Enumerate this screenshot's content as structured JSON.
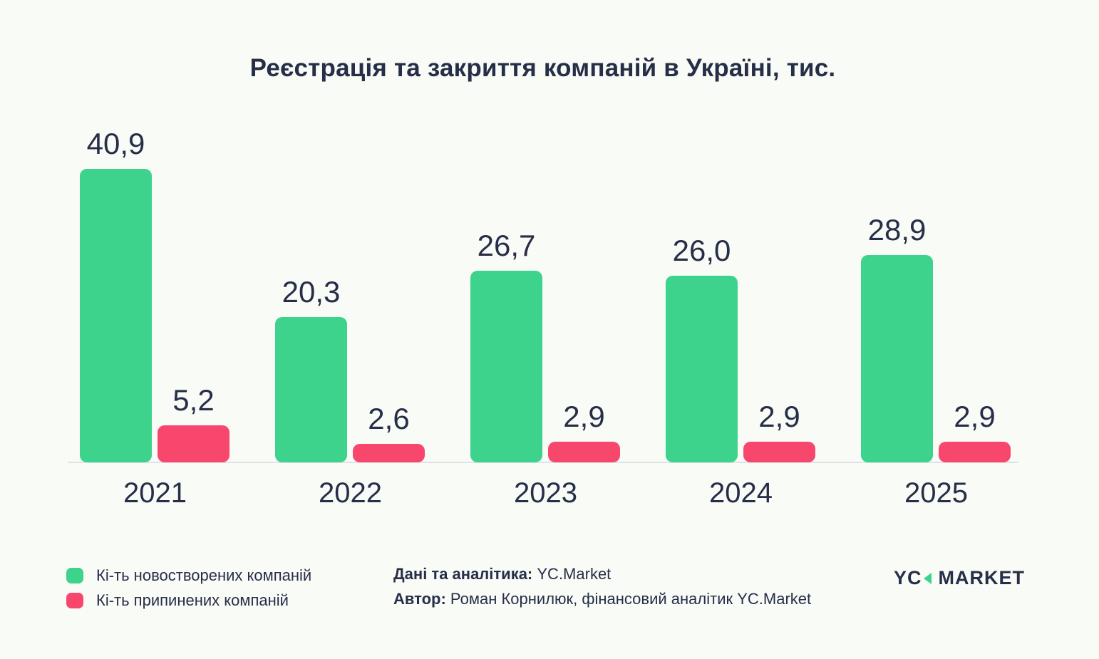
{
  "title": "Реєстрація та закриття компаній в Україні, тис.",
  "chart_data": {
    "type": "bar",
    "title": "Реєстрація та закриття компаній в Україні, тис.",
    "categories": [
      "2021",
      "2022",
      "2023",
      "2024",
      "2025"
    ],
    "series": [
      {
        "name": "Кі-ть новостворених компаній",
        "key": "registered",
        "color": "#3dd38c",
        "values": [
          40.9,
          20.3,
          26.7,
          26.0,
          28.9
        ],
        "display": [
          "40,9",
          "20,3",
          "26,7",
          "26,0",
          "28,9"
        ]
      },
      {
        "name": "Кі-ть припинених компаній",
        "key": "closed",
        "color": "#f8476d",
        "values": [
          5.2,
          2.6,
          2.9,
          2.9,
          2.9
        ],
        "display": [
          "5,2",
          "2,6",
          "2,9",
          "2,9",
          "2,9"
        ]
      }
    ],
    "xlabel": "",
    "ylabel": "",
    "ylim": [
      0,
      40.9
    ],
    "grid": false,
    "value_labels": true,
    "legend_position": "bottom-left"
  },
  "footer": {
    "credits": [
      {
        "label": "Дані та аналітика:",
        "value": " YC.Market"
      },
      {
        "label": "Автор:",
        "value": " Роман Корнилюк, фінансовий аналітик YC.Market"
      }
    ],
    "logo": {
      "text_left": "YC",
      "text_right": "MARKET",
      "accent_color": "#3dd38c"
    }
  },
  "colors": {
    "background": "#f9fbf7",
    "text": "#272e48",
    "axis_line": "#e1e2e6",
    "bar_green": "#3dd38c",
    "bar_red": "#f8476d"
  }
}
